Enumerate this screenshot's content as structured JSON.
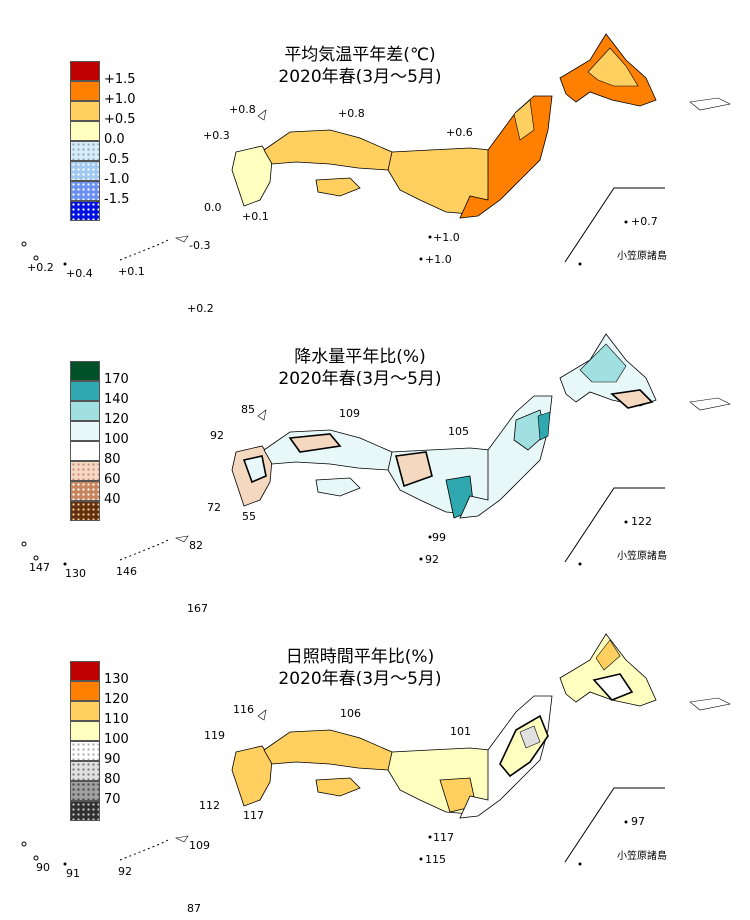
{
  "maps": [
    {
      "id": "temperature",
      "title_line1": "平均気温平年差(℃)",
      "title_line2": "2020年春(3月～5月)",
      "legend": [
        {
          "label": "+1.5",
          "color": "#c00000",
          "pattern": "solid"
        },
        {
          "label": "+1.0",
          "color": "#ff8000",
          "pattern": "solid"
        },
        {
          "label": "+0.5",
          "color": "#ffd060",
          "pattern": "solid"
        },
        {
          "label": "0.0",
          "color": "#ffffc0",
          "pattern": "solid"
        },
        {
          "label": "-0.5",
          "color": "#d8ecf8",
          "pattern": "dots"
        },
        {
          "label": "-1.0",
          "color": "#a0c8f0",
          "pattern": "dots"
        },
        {
          "label": "-1.5",
          "color": "#6a90f0",
          "pattern": "dots"
        },
        {
          "label": "",
          "color": "#0010e0",
          "pattern": "dots"
        }
      ],
      "station_values": [
        "+0.8",
        "+0.8",
        "+0.3",
        "+0.6",
        "0.0",
        "+0.1",
        "+0.7",
        "+1.0",
        "+1.0",
        "-0.3",
        "+0.2",
        "+0.4",
        "+0.1",
        "+0.2"
      ],
      "ogasawara_label": "小笠原諸島"
    },
    {
      "id": "precipitation",
      "title_line1": "降水量平年比(%)",
      "title_line2": "2020年春(3月～5月)",
      "legend": [
        {
          "label": "170",
          "color": "#005028",
          "pattern": "solid"
        },
        {
          "label": "140",
          "color": "#30a8b0",
          "pattern": "solid"
        },
        {
          "label": "120",
          "color": "#a0e0e0",
          "pattern": "solid"
        },
        {
          "label": "100",
          "color": "#e8f8f8",
          "pattern": "solid"
        },
        {
          "label": "80",
          "color": "#ffffff",
          "pattern": "solid"
        },
        {
          "label": "60",
          "color": "#f4d8c0",
          "pattern": "dots"
        },
        {
          "label": "40",
          "color": "#c8845c",
          "pattern": "dots"
        },
        {
          "label": "",
          "color": "#603010",
          "pattern": "dots"
        }
      ],
      "station_values": [
        "85",
        "109",
        "92",
        "105",
        "72",
        "55",
        "122",
        "99",
        "92",
        "82",
        "147",
        "130",
        "146",
        "167"
      ],
      "ogasawara_label": "小笠原諸島"
    },
    {
      "id": "sunshine",
      "title_line1": "日照時間平年比(%)",
      "title_line2": "2020年春(3月～5月)",
      "legend": [
        {
          "label": "130",
          "color": "#c00000",
          "pattern": "solid"
        },
        {
          "label": "120",
          "color": "#ff8000",
          "pattern": "solid"
        },
        {
          "label": "110",
          "color": "#ffd060",
          "pattern": "solid"
        },
        {
          "label": "100",
          "color": "#ffffc0",
          "pattern": "solid"
        },
        {
          "label": "90",
          "color": "#ffffff",
          "pattern": "solid"
        },
        {
          "label": "80",
          "color": "#e0e0e0",
          "pattern": "dots"
        },
        {
          "label": "70",
          "color": "#a0a0a0",
          "pattern": "dots"
        },
        {
          "label": "",
          "color": "#303030",
          "pattern": "dots"
        }
      ],
      "station_values": [
        "116",
        "106",
        "119",
        "101",
        "112",
        "117",
        "97",
        "117",
        "115",
        "109",
        "90",
        "91",
        "92",
        "87"
      ],
      "ogasawara_label": "小笠原諸島"
    }
  ],
  "colors": {
    "temp_land": "#ffd060",
    "temp_light": "#ffffc0",
    "temp_warm": "#ff8000",
    "prec_land": "#e8f8f8",
    "prec_mid": "#a0e0e0",
    "prec_dry": "#f4d8c0",
    "prec_wet": "#30a8b0",
    "sun_land": "#ffffc0",
    "sun_mid": "#ffd060",
    "sun_low": "#e0e0e0"
  }
}
